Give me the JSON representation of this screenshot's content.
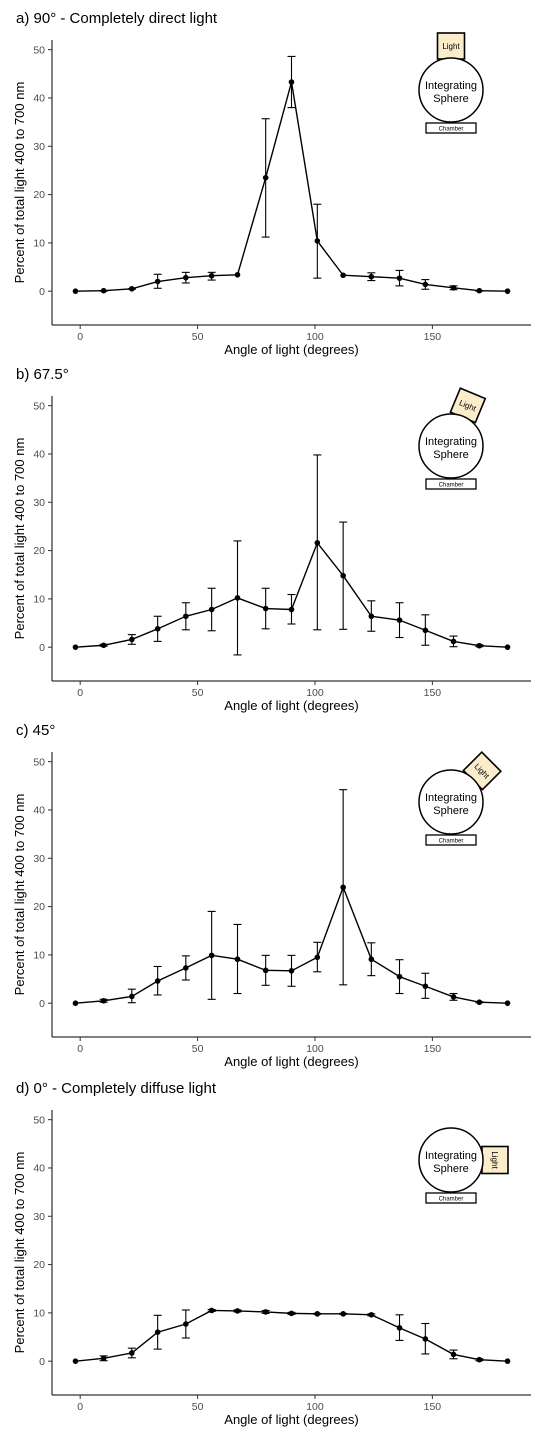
{
  "chart_data": [
    {
      "type": "line",
      "title": "a) 90° - Completely direct light",
      "xlabel": "Angle of light (degrees)",
      "ylabel": "Percent of total light 400 to 700 nm",
      "xlim": [
        -12,
        192
      ],
      "ylim": [
        -7,
        52
      ],
      "xticks": [
        0,
        50,
        100,
        150
      ],
      "yticks": [
        0,
        10,
        20,
        30,
        40,
        50
      ],
      "grid": false,
      "x": [
        -2,
        10,
        22,
        33,
        45,
        56,
        67,
        79,
        90,
        101,
        112,
        124,
        136,
        147,
        159,
        170,
        182
      ],
      "y": [
        0,
        0.1,
        0.5,
        2.0,
        2.8,
        3.2,
        3.4,
        23.5,
        43.3,
        10.4,
        3.3,
        3.0,
        2.7,
        1.4,
        0.7,
        0.1,
        0
      ],
      "err_low": [
        0,
        0,
        0.4,
        0.6,
        1.7,
        2.3,
        3.4,
        11.2,
        38.0,
        2.7,
        3.3,
        2.2,
        1.1,
        0.4,
        0.3,
        0,
        0
      ],
      "err_high": [
        0,
        0.1,
        0.5,
        3.5,
        3.9,
        3.9,
        3.4,
        35.7,
        48.6,
        18.0,
        3.3,
        3.8,
        4.3,
        2.4,
        1.1,
        0.1,
        0
      ],
      "inset": {
        "light_label": "Light",
        "sphere_line1": "Integrating",
        "sphere_line2": "Sphere",
        "chamber_label": "Chamber",
        "light_angle": 90
      }
    },
    {
      "type": "line",
      "title": "b) 67.5°",
      "xlabel": "Angle of light (degrees)",
      "ylabel": "Percent of total light 400 to 700 nm",
      "xlim": [
        -12,
        192
      ],
      "ylim": [
        -7,
        52
      ],
      "xticks": [
        0,
        50,
        100,
        150
      ],
      "yticks": [
        0,
        10,
        20,
        30,
        40,
        50
      ],
      "grid": false,
      "x": [
        -2,
        10,
        22,
        33,
        45,
        56,
        67,
        79,
        90,
        101,
        112,
        124,
        136,
        147,
        159,
        170,
        182
      ],
      "y": [
        0,
        0.4,
        1.6,
        3.8,
        6.4,
        7.8,
        10.2,
        8.0,
        7.8,
        21.6,
        14.8,
        6.4,
        5.6,
        3.5,
        1.2,
        0.3,
        0
      ],
      "err_low": [
        0,
        0.2,
        0.6,
        1.2,
        3.6,
        3.4,
        -1.6,
        3.8,
        4.8,
        3.6,
        3.7,
        3.3,
        2.0,
        0.4,
        0.1,
        0.1,
        0
      ],
      "err_high": [
        0,
        0.6,
        2.6,
        6.4,
        9.2,
        12.2,
        22.0,
        12.2,
        10.9,
        39.8,
        25.9,
        9.6,
        9.2,
        6.7,
        2.3,
        0.5,
        0
      ],
      "inset": {
        "light_label": "Light",
        "sphere_line1": "Integrating",
        "sphere_line2": "Sphere",
        "chamber_label": "Chamber",
        "light_angle": 67.5
      }
    },
    {
      "type": "line",
      "title": "c) 45°",
      "xlabel": "Angle of light (degrees)",
      "ylabel": "Percent of total light 400 to 700 nm",
      "xlim": [
        -12,
        192
      ],
      "ylim": [
        -7,
        52
      ],
      "xticks": [
        0,
        50,
        100,
        150
      ],
      "yticks": [
        0,
        10,
        20,
        30,
        40,
        50
      ],
      "grid": false,
      "x": [
        -2,
        10,
        22,
        33,
        45,
        56,
        67,
        79,
        90,
        101,
        112,
        124,
        136,
        147,
        159,
        170,
        182
      ],
      "y": [
        0,
        0.5,
        1.4,
        4.6,
        7.3,
        9.9,
        9.1,
        6.8,
        6.7,
        9.5,
        24.0,
        9.1,
        5.5,
        3.5,
        1.3,
        0.2,
        0
      ],
      "err_low": [
        0,
        0.2,
        0.1,
        1.7,
        4.8,
        0.8,
        2.0,
        3.7,
        3.5,
        6.5,
        3.8,
        5.7,
        2.0,
        1.0,
        0.6,
        0.1,
        0
      ],
      "err_high": [
        0,
        0.8,
        2.9,
        7.6,
        9.8,
        19.0,
        16.3,
        9.9,
        9.9,
        12.6,
        44.2,
        12.5,
        9.0,
        6.2,
        2.0,
        0.3,
        0
      ],
      "inset": {
        "light_label": "Light",
        "sphere_line1": "Integrating",
        "sphere_line2": "Sphere",
        "chamber_label": "Chamber",
        "light_angle": 45
      }
    },
    {
      "type": "line",
      "title": "d) 0° - Completely diffuse light",
      "xlabel": "Angle of light (degrees)",
      "ylabel": "Percent of total light 400 to 700 nm",
      "xlim": [
        -12,
        192
      ],
      "ylim": [
        -7,
        52
      ],
      "xticks": [
        0,
        50,
        100,
        150
      ],
      "yticks": [
        0,
        10,
        20,
        30,
        40,
        50
      ],
      "grid": false,
      "x": [
        -2,
        10,
        22,
        33,
        45,
        56,
        67,
        79,
        90,
        101,
        112,
        124,
        136,
        147,
        159,
        170,
        182
      ],
      "y": [
        0,
        0.6,
        1.7,
        6.0,
        7.7,
        10.5,
        10.4,
        10.2,
        9.9,
        9.8,
        9.8,
        9.6,
        6.9,
        4.6,
        1.4,
        0.3,
        0
      ],
      "err_low": [
        0,
        0.1,
        0.7,
        2.5,
        4.8,
        10.3,
        10.2,
        9.9,
        9.7,
        9.7,
        9.7,
        9.4,
        4.3,
        1.5,
        0.5,
        0.1,
        0
      ],
      "err_high": [
        0,
        1.1,
        2.7,
        9.5,
        10.6,
        10.7,
        10.6,
        10.5,
        10.1,
        9.9,
        9.9,
        9.8,
        9.6,
        7.8,
        2.3,
        0.5,
        0
      ],
      "inset": {
        "light_label": "Light",
        "sphere_line1": "Integrating",
        "sphere_line2": "Sphere",
        "chamber_label": "Chamber",
        "light_angle": 0
      }
    }
  ]
}
